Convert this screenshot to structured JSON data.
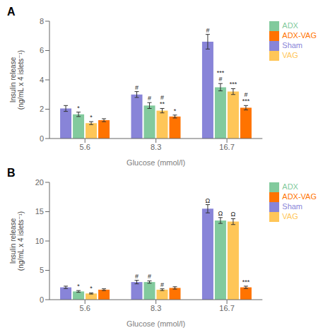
{
  "chart_data": [
    {
      "type": "bar",
      "title": "A",
      "categories": [
        "5.6",
        "8.3",
        "16.7"
      ],
      "x_label": "Glucose (mmol/l)",
      "y_label": "Insulin release\n(ng/mL x 4 islets⁻¹)",
      "ylim": [
        0,
        8
      ],
      "yticks": [
        0,
        2,
        4,
        6,
        8
      ],
      "grid": false,
      "legend": "right",
      "series": [
        {
          "name": "Sham",
          "color": "#8884d8",
          "values": [
            2.05,
            3.0,
            6.6
          ],
          "errors": [
            0.2,
            0.2,
            0.5
          ],
          "annotations": [
            null,
            "#",
            "#"
          ]
        },
        {
          "name": "ADX",
          "color": "#82ca9d",
          "values": [
            1.65,
            2.25,
            3.5
          ],
          "errors": [
            0.15,
            0.2,
            0.25
          ],
          "annotations": [
            "*",
            "#",
            "***\n#"
          ]
        },
        {
          "name": "VAG",
          "color": "#ffc658",
          "values": [
            1.05,
            1.9,
            3.2
          ],
          "errors": [
            0.1,
            0.15,
            0.2
          ],
          "annotations": [
            "*",
            "#\n**",
            "***"
          ]
        },
        {
          "name": "ADX-VAG",
          "color": "#ff7300",
          "values": [
            1.25,
            1.5,
            2.1
          ],
          "errors": [
            0.1,
            0.1,
            0.15
          ],
          "annotations": [
            null,
            "*",
            "#\n***"
          ]
        }
      ]
    },
    {
      "type": "bar",
      "title": "B",
      "categories": [
        "5.6",
        "8.3",
        "16.7"
      ],
      "x_label": "Glucose (mmol/l)",
      "y_label": "Insulin release\n(ng/mL x 4 islets⁻¹)",
      "ylim": [
        0,
        20
      ],
      "yticks": [
        0,
        5,
        10,
        15,
        20
      ],
      "grid": false,
      "legend": "right",
      "series": [
        {
          "name": "Sham",
          "color": "#8884d8",
          "values": [
            2.1,
            3.0,
            15.5
          ],
          "errors": [
            0.2,
            0.3,
            0.7
          ],
          "annotations": [
            null,
            "#",
            "Ω"
          ]
        },
        {
          "name": "ADX",
          "color": "#82ca9d",
          "values": [
            1.4,
            3.0,
            13.5
          ],
          "errors": [
            0.15,
            0.2,
            0.5
          ],
          "annotations": [
            "*",
            "#",
            "Ω"
          ]
        },
        {
          "name": "VAG",
          "color": "#ffc658",
          "values": [
            1.05,
            1.7,
            13.3
          ],
          "errors": [
            0.1,
            0.15,
            0.5
          ],
          "annotations": [
            "*",
            "#",
            "Ω"
          ]
        },
        {
          "name": "ADX-VAG",
          "color": "#ff7300",
          "values": [
            1.7,
            2.0,
            2.1
          ],
          "errors": [
            0.15,
            0.2,
            0.2
          ],
          "annotations": [
            null,
            null,
            "***"
          ]
        }
      ]
    }
  ]
}
